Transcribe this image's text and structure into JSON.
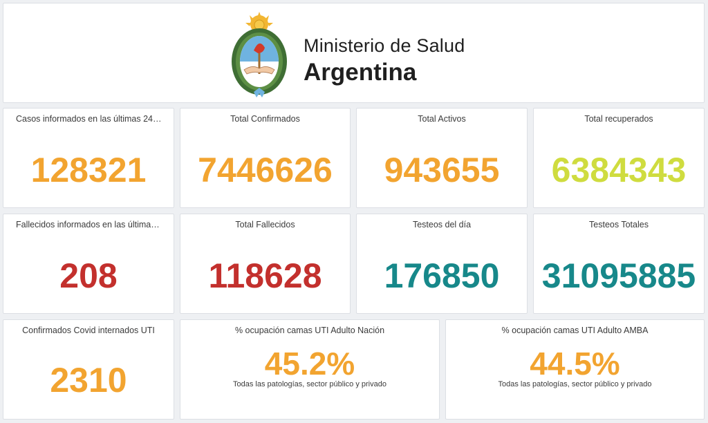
{
  "header": {
    "ministry": "Ministerio de Salud",
    "country": "Argentina",
    "logo_icon": "coat-of-arms-icon"
  },
  "colors": {
    "orange": "#f2a430",
    "yellow_green": "#cfdc3f",
    "red": "#c3302d",
    "teal": "#17888a"
  },
  "cards": {
    "casos_24h": {
      "title": "Casos informados en las últimas 24…",
      "value": "128321"
    },
    "total_confirmados": {
      "title": "Total Confirmados",
      "value": "7446626"
    },
    "total_activos": {
      "title": "Total Activos",
      "value": "943655"
    },
    "total_recuperados": {
      "title": "Total recuperados",
      "value": "6384343"
    },
    "fallecidos_24h": {
      "title": "Fallecidos informados en las última…",
      "value": "208"
    },
    "total_fallecidos": {
      "title": "Total Fallecidos",
      "value": "118628"
    },
    "testeos_dia": {
      "title": "Testeos del día",
      "value": "176850"
    },
    "testeos_totales": {
      "title": "Testeos Totales",
      "value": "31095885"
    },
    "internados_uti": {
      "title": "Confirmados Covid internados UTI",
      "value": "2310"
    },
    "ocupacion_nacion": {
      "title": "% ocupación camas UTI Adulto Nación",
      "value": "45.2%",
      "subtitle": "Todas las patologías, sector público y privado"
    },
    "ocupacion_amba": {
      "title": "% ocupación camas UTI Adulto AMBA",
      "value": "44.5%",
      "subtitle": "Todas las patologías, sector público y privado"
    }
  }
}
